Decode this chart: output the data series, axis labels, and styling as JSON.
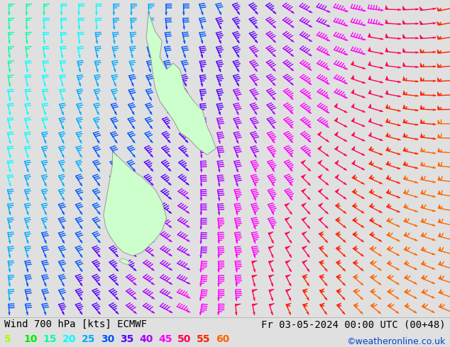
{
  "title_left": "Wind 700 hPa [kts] ECMWF",
  "title_right": "Fr 03-05-2024 00:00 UTC (00+48)",
  "credit": "©weatheronline.co.uk",
  "bg_color": "#e0e0e0",
  "land_color": "#ccffcc",
  "land_edge_color": "#999999",
  "colorbar_labels": [
    "5",
    "10",
    "15",
    "20",
    "25",
    "30",
    "35",
    "40",
    "45",
    "50",
    "55",
    "60"
  ],
  "colorbar_colors": [
    "#aaff00",
    "#00ee00",
    "#00ffaa",
    "#00ffff",
    "#00aaff",
    "#0055ff",
    "#5500ff",
    "#aa00ff",
    "#ff00ff",
    "#ff0055",
    "#ff2200",
    "#ff6600"
  ],
  "title_fontsize": 10,
  "credit_fontsize": 9,
  "colorbar_fontsize": 10,
  "figsize": [
    6.34,
    4.9
  ],
  "dpi": 100,
  "nx": 26,
  "ny": 22
}
